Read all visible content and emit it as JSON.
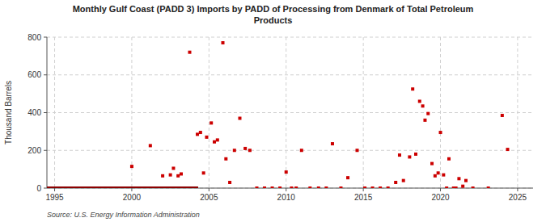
{
  "chart_data": {
    "type": "scatter",
    "title": "Monthly Gulf Coast (PADD 3) Imports by PADD of Processing from Denmark of Total Petroleum\nProducts",
    "ylabel": "Thousand Barrels",
    "source": "Source: U.S. Energy Information Administration",
    "xlim": [
      1994.5,
      2026
    ],
    "ylim": [
      0,
      800
    ],
    "xticks": [
      1995,
      2000,
      2005,
      2010,
      2015,
      2020,
      2025
    ],
    "yticks": [
      0,
      200,
      400,
      600,
      800
    ],
    "grid": true,
    "series": [
      {
        "type": "line",
        "color": "#8b0000",
        "x": [
          1994.5,
          2004.3
        ],
        "values": [
          0,
          0
        ]
      },
      {
        "type": "scatter",
        "color": "#cc0000",
        "marker": "square",
        "x": [
          2000.0,
          2001.2,
          2002.0,
          2002.5,
          2002.7,
          2003.0,
          2003.2,
          2003.75,
          2004.25,
          2004.45,
          2004.65,
          2004.85,
          2005.15,
          2005.35,
          2005.55,
          2005.9,
          2006.1,
          2006.35,
          2006.65,
          2007.0,
          2007.35,
          2007.65,
          2010.0,
          2011.0,
          2013.0,
          2014.0,
          2014.6,
          2017.1,
          2017.35,
          2017.6,
          2018.0,
          2018.2,
          2018.4,
          2018.65,
          2018.85,
          2019.0,
          2019.2,
          2019.45,
          2019.65,
          2019.85,
          2020.0,
          2020.2,
          2020.55,
          2021.2,
          2021.45,
          2021.65,
          2024.0,
          2024.35
        ],
        "values": [
          115,
          225,
          65,
          70,
          105,
          65,
          75,
          720,
          285,
          295,
          80,
          270,
          345,
          245,
          255,
          770,
          155,
          30,
          200,
          370,
          210,
          200,
          85,
          200,
          235,
          55,
          200,
          30,
          175,
          40,
          165,
          525,
          180,
          460,
          435,
          360,
          395,
          130,
          65,
          80,
          295,
          70,
          155,
          50,
          10,
          40,
          385,
          205
        ]
      },
      {
        "type": "scatter",
        "color": "#cc0000",
        "marker": "square",
        "x": [
          2008.1,
          2008.6,
          2009.1,
          2009.6,
          2010.35,
          2010.65,
          2011.55,
          2012.1,
          2012.6,
          2013.55,
          2015.1,
          2015.6,
          2016.1,
          2016.6,
          2020.4,
          2020.85,
          2021.0,
          2022.1,
          2023.1
        ],
        "values": [
          0,
          0,
          0,
          0,
          0,
          0,
          0,
          0,
          0,
          0,
          0,
          0,
          0,
          0,
          0,
          0,
          0,
          0,
          0
        ]
      }
    ]
  }
}
